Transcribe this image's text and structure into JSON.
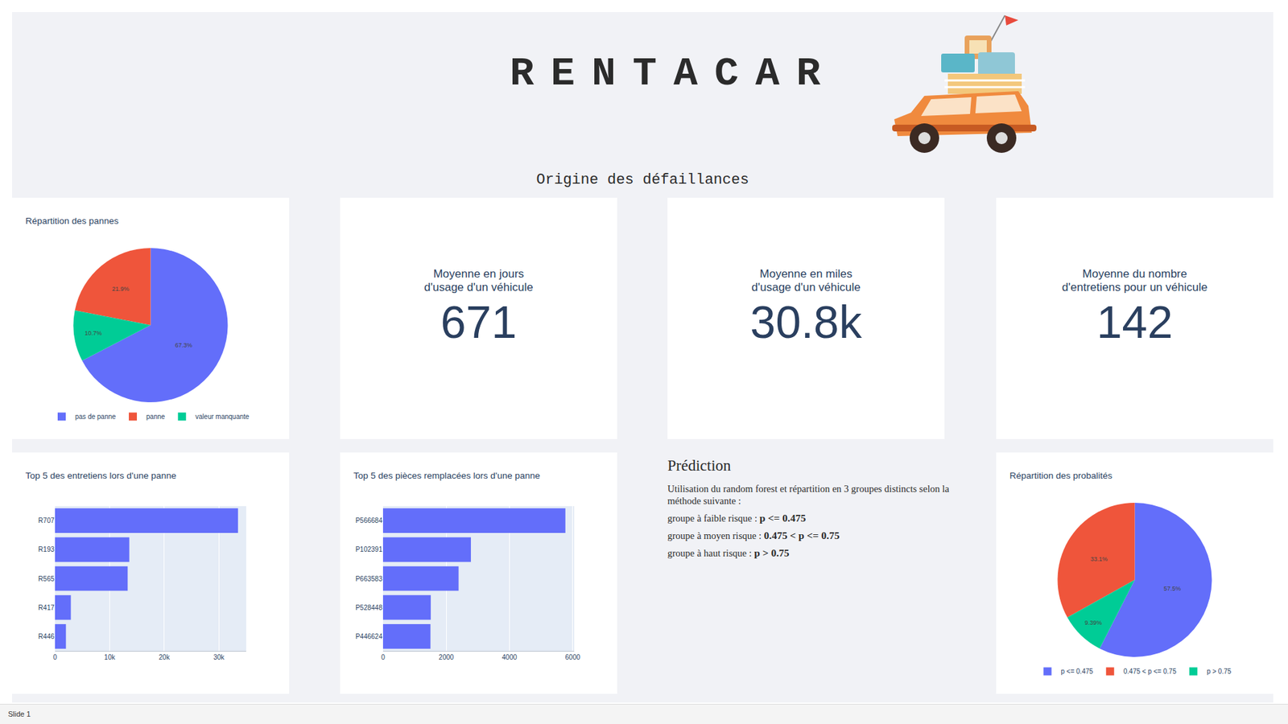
{
  "header": {
    "title": "RENTACAR",
    "subtitle": "Origine des défaillances"
  },
  "chart_data": [
    {
      "type": "pie",
      "title": "Répartition des pannes",
      "categories": [
        "pas de panne",
        "panne",
        "valeur manquante"
      ],
      "values": [
        67.3,
        21.9,
        10.7
      ],
      "value_labels": [
        "67.3%",
        "21.9%",
        "10.7%"
      ],
      "colors": [
        "#636efa",
        "#ef553b",
        "#00cc96"
      ],
      "data_labels": true,
      "legend": "bottom"
    },
    {
      "type": "bar",
      "title": "Top 5 des entretiens lors d'une panne",
      "orientation": "horizontal",
      "categories": [
        "R707",
        "R193",
        "R565",
        "R417",
        "R446"
      ],
      "values": [
        33500,
        13600,
        13300,
        2900,
        2000
      ],
      "color": "#636efa",
      "xlim": [
        0,
        35000
      ],
      "xticks": [
        0,
        {
          "value": 10000,
          "label": "10k"
        },
        {
          "value": 20000,
          "label": "20k"
        },
        {
          "value": 30000,
          "label": "30k"
        }
      ],
      "grid": true
    },
    {
      "type": "bar",
      "title": "Top 5 des pièces remplacées lors d'une panne",
      "orientation": "horizontal",
      "categories": [
        "P566684",
        "P102391",
        "P663583",
        "P528448",
        "P446624"
      ],
      "values": [
        5770,
        2780,
        2390,
        1510,
        1500
      ],
      "color": "#636efa",
      "xlim": [
        0,
        6050
      ],
      "xticks": [
        0,
        2000,
        4000,
        6000
      ],
      "grid": true
    },
    {
      "type": "pie",
      "title": "Répartition des probalités",
      "categories": [
        "p <= 0.475",
        "0.475 < p <= 0.75",
        "p > 0.75"
      ],
      "values": [
        57.5,
        33.1,
        9.39
      ],
      "value_labels": [
        "57.5%",
        "33.1%",
        "9.39%"
      ],
      "colors": [
        "#636efa",
        "#ef553b",
        "#00cc96"
      ],
      "data_labels": true,
      "legend": "bottom"
    }
  ],
  "kpis": [
    {
      "title": [
        "Moyenne en jours",
        "d'usage d'un véhicule"
      ],
      "value": 671
    },
    {
      "title": [
        "Moyenne en miles",
        "d'usage d'un véhicule"
      ],
      "value": {
        "value": 30800,
        "label": "30.8k"
      }
    },
    {
      "title": [
        "Moyenne du nombre",
        "d'entretiens pour un véhicule"
      ],
      "value": 142
    }
  ],
  "prediction": {
    "title": "Prédiction",
    "intro": "Utilisation du random forest et répartition en 3 groupes distincts selon la méthode suivante :",
    "groups": [
      {
        "label": "groupe à faible risque : ",
        "rule": "p <= 0.475"
      },
      {
        "label": "groupe à moyen risque : ",
        "rule": "0.475 < p <= 0.75"
      },
      {
        "label": "groupe à haut risque : ",
        "rule": "p > 0.75"
      }
    ]
  },
  "footer": "Slide 1"
}
